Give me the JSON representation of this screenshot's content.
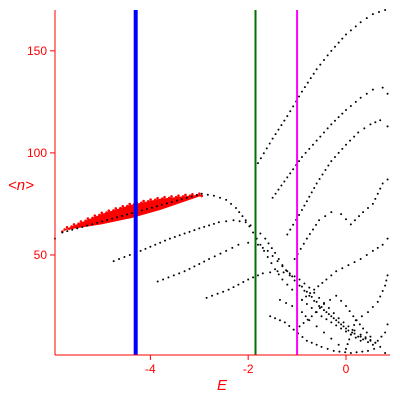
{
  "chart_data": {
    "type": "scatter",
    "xlabel": "E",
    "ylabel": "<n>",
    "xlim": [
      -5.95,
      0.9
    ],
    "ylim": [
      1,
      170
    ],
    "xticks": [
      -4,
      -2,
      0
    ],
    "yticks": [
      50,
      100,
      150
    ],
    "axis_color": "#ff0000",
    "vertical_lines": [
      {
        "x": -4.3,
        "color": "#0000ff"
      },
      {
        "x": -1.85,
        "color": "#007000"
      },
      {
        "x": -1.0,
        "color": "#ff00ff"
      }
    ],
    "highlight_band": {
      "color": "#ff0000",
      "x_start": -5.8,
      "x_end": -2.95,
      "upper": [
        [
          -5.8,
          62
        ],
        [
          -5.0,
          70
        ],
        [
          -4.4,
          74.5
        ],
        [
          -3.8,
          77.5
        ],
        [
          -3.2,
          79
        ],
        [
          -2.95,
          79.5
        ]
      ],
      "lower": [
        [
          -5.8,
          62
        ],
        [
          -5.0,
          65
        ],
        [
          -4.4,
          68
        ],
        [
          -3.8,
          72
        ],
        [
          -3.2,
          77
        ],
        [
          -2.95,
          79
        ]
      ]
    },
    "series": [
      {
        "color": "#000000",
        "points": [
          [
            -5.95,
            58
          ],
          [
            -5.8,
            61
          ],
          [
            -2.95,
            80
          ],
          [
            -2.7,
            79
          ],
          [
            -2.45,
            77
          ],
          [
            -2.25,
            73
          ],
          [
            -2.05,
            67
          ],
          [
            -1.9,
            61
          ],
          [
            -1.75,
            55
          ],
          [
            -1.6,
            49
          ],
          [
            -1.45,
            43
          ],
          [
            -1.3,
            38
          ],
          [
            -1.1,
            33
          ],
          [
            -0.9,
            28
          ],
          [
            -0.7,
            24
          ],
          [
            -0.5,
            20
          ],
          [
            -0.3,
            17
          ],
          [
            -0.1,
            14
          ],
          [
            0.1,
            11
          ],
          [
            0.3,
            8
          ]
        ]
      },
      {
        "color": "#000000",
        "points": [
          [
            -4.75,
            47
          ],
          [
            -4.2,
            52
          ],
          [
            -3.6,
            58
          ],
          [
            -3.0,
            63
          ],
          [
            -2.6,
            66
          ],
          [
            -2.3,
            67
          ],
          [
            -2.05,
            66
          ],
          [
            -1.85,
            63
          ],
          [
            -1.65,
            58
          ],
          [
            -1.45,
            51
          ],
          [
            -1.3,
            45
          ],
          [
            -1.15,
            40
          ],
          [
            -0.95,
            35
          ],
          [
            -0.75,
            30
          ],
          [
            -0.55,
            25
          ],
          [
            -0.35,
            21
          ],
          [
            -0.15,
            17
          ],
          [
            0.05,
            13
          ],
          [
            0.3,
            10
          ],
          [
            0.6,
            7
          ]
        ]
      },
      {
        "color": "#000000",
        "points": [
          [
            -3.85,
            37
          ],
          [
            -3.3,
            42
          ],
          [
            -2.8,
            48
          ],
          [
            -2.45,
            52
          ],
          [
            -2.2,
            55
          ],
          [
            -2.0,
            56
          ],
          [
            -1.8,
            55
          ],
          [
            -1.6,
            52
          ],
          [
            -1.4,
            47
          ],
          [
            -1.2,
            42
          ],
          [
            -1.0,
            37
          ],
          [
            -0.8,
            32
          ],
          [
            -0.6,
            27
          ],
          [
            -0.4,
            22
          ],
          [
            -0.2,
            18
          ],
          [
            0.0,
            14
          ],
          [
            0.25,
            10
          ],
          [
            0.55,
            6
          ]
        ]
      },
      {
        "color": "#000000",
        "points": [
          [
            -2.85,
            29
          ],
          [
            -2.4,
            33
          ],
          [
            -2.0,
            38
          ],
          [
            -1.7,
            41
          ],
          [
            -1.4,
            42
          ],
          [
            -1.15,
            41
          ],
          [
            -0.95,
            38
          ],
          [
            -0.75,
            34
          ],
          [
            -0.55,
            29
          ],
          [
            -0.35,
            24
          ],
          [
            -0.15,
            19
          ],
          [
            0.05,
            15
          ],
          [
            0.3,
            11
          ],
          [
            0.6,
            7
          ]
        ]
      },
      {
        "color": "#000000",
        "points": [
          [
            -1.8,
            95
          ],
          [
            -1.5,
            107
          ],
          [
            -1.2,
            118
          ],
          [
            -0.9,
            130
          ],
          [
            -0.6,
            141
          ],
          [
            -0.3,
            150
          ],
          [
            0.0,
            158
          ],
          [
            0.3,
            164
          ],
          [
            0.55,
            168
          ],
          [
            0.8,
            170
          ]
        ]
      },
      {
        "color": "#000000",
        "points": [
          [
            -1.5,
            78
          ],
          [
            -1.2,
            88
          ],
          [
            -0.9,
            98
          ],
          [
            -0.6,
            106
          ],
          [
            -0.3,
            114
          ],
          [
            0.0,
            121
          ],
          [
            0.3,
            127
          ],
          [
            0.55,
            131
          ],
          [
            0.75,
            132
          ],
          [
            0.85,
            129
          ]
        ]
      },
      {
        "color": "#000000",
        "points": [
          [
            -1.2,
            60
          ],
          [
            -0.9,
            72
          ],
          [
            -0.6,
            85
          ],
          [
            -0.3,
            96
          ],
          [
            0.0,
            104
          ],
          [
            0.25,
            110
          ],
          [
            0.5,
            114
          ],
          [
            0.7,
            116
          ],
          [
            0.85,
            113
          ]
        ]
      },
      {
        "color": "#000000",
        "points": [
          [
            -1.05,
            48
          ],
          [
            -0.8,
            58
          ],
          [
            -0.55,
            67
          ],
          [
            -0.3,
            71
          ],
          [
            -0.1,
            70
          ],
          [
            0.1,
            65
          ],
          [
            0.35,
            71
          ],
          [
            0.55,
            75
          ],
          [
            0.75,
            85
          ],
          [
            0.85,
            87
          ]
        ]
      },
      {
        "color": "#000000",
        "points": [
          [
            -0.9,
            28
          ],
          [
            -0.65,
            33
          ],
          [
            -0.4,
            38
          ],
          [
            -0.2,
            42
          ],
          [
            0.05,
            45
          ],
          [
            0.3,
            48
          ],
          [
            0.55,
            52
          ],
          [
            0.75,
            55
          ],
          [
            0.85,
            58
          ]
        ]
      },
      {
        "color": "#000000",
        "points": [
          [
            -1.35,
            28
          ],
          [
            -1.1,
            25
          ],
          [
            -0.9,
            22
          ],
          [
            -0.75,
            18
          ],
          [
            -0.6,
            15
          ],
          [
            -0.45,
            12
          ],
          [
            -0.3,
            9
          ],
          [
            -0.15,
            6
          ],
          [
            0.0,
            4
          ],
          [
            0.2,
            18
          ],
          [
            0.45,
            22
          ],
          [
            0.65,
            27
          ],
          [
            0.8,
            35
          ],
          [
            0.85,
            40
          ]
        ]
      },
      {
        "color": "#000000",
        "points": [
          [
            -0.95,
            15
          ],
          [
            -0.7,
            20
          ],
          [
            -0.45,
            26
          ],
          [
            -0.2,
            30
          ],
          [
            0.0,
            25
          ],
          [
            0.15,
            20
          ],
          [
            0.35,
            14
          ],
          [
            0.5,
            10
          ],
          [
            0.65,
            8
          ],
          [
            0.8,
            12
          ],
          [
            0.85,
            16
          ]
        ]
      },
      {
        "color": "#000000",
        "points": [
          [
            -1.55,
            20
          ],
          [
            -1.25,
            17
          ],
          [
            -0.8,
            8
          ],
          [
            -0.5,
            5
          ],
          [
            -0.25,
            3
          ],
          [
            0.1,
            2
          ],
          [
            0.45,
            3
          ],
          [
            0.7,
            5
          ],
          [
            0.8,
            2
          ]
        ]
      }
    ]
  }
}
